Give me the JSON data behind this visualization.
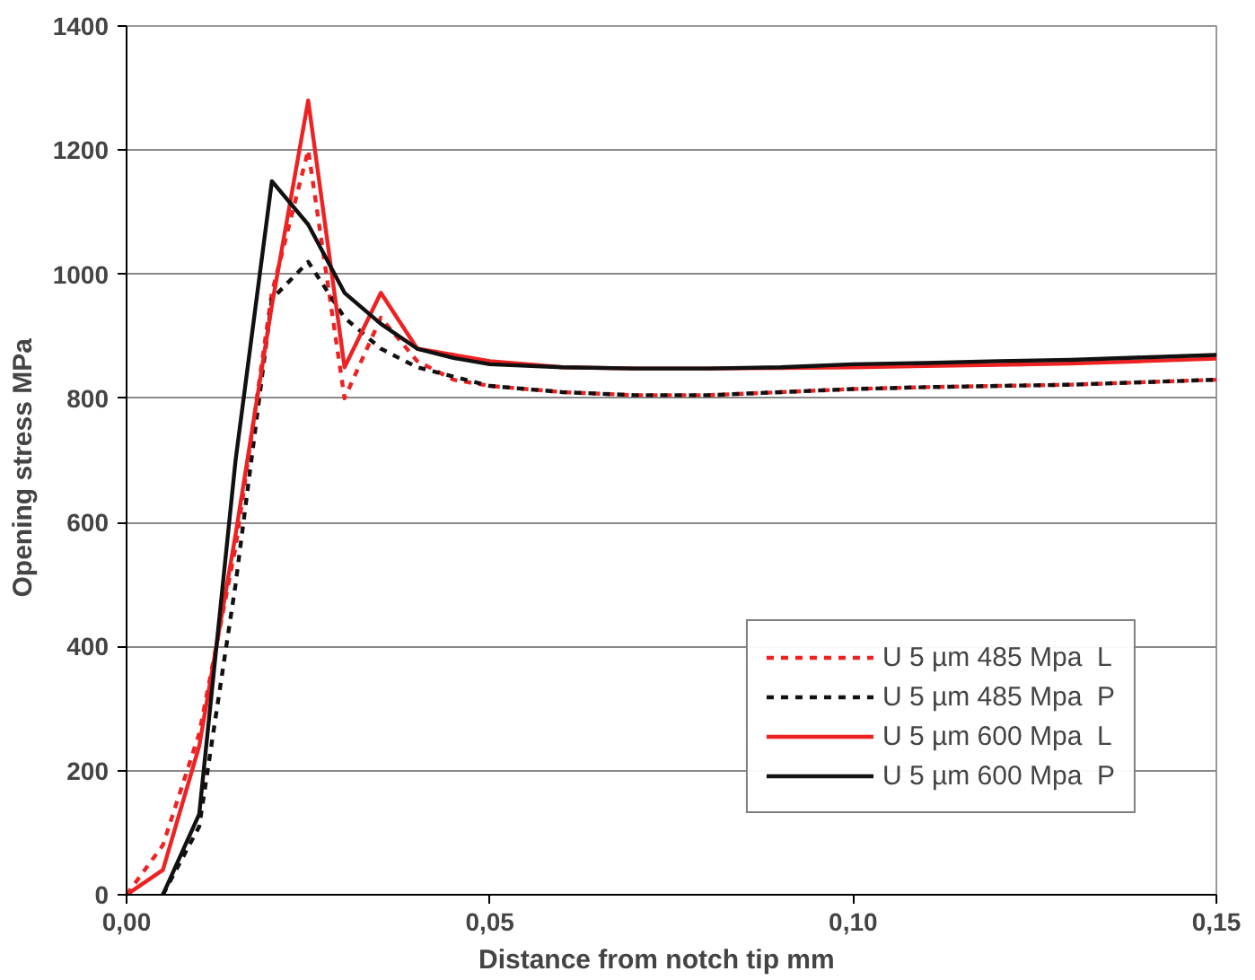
{
  "chart_data": {
    "type": "line",
    "xlabel": "Distance from notch tip     mm",
    "ylabel": "Opening stress   MPa",
    "xlim": [
      0,
      0.15
    ],
    "xticks": [
      {
        "value": 0,
        "label": "0,00"
      },
      {
        "value": 0.05,
        "label": "0,05"
      },
      {
        "value": 0.1,
        "label": "0,10"
      },
      {
        "value": 0.15,
        "label": "0,15"
      }
    ],
    "ylim": [
      0,
      1400
    ],
    "yticks": [
      0,
      200,
      400,
      600,
      800,
      1000,
      1200,
      1400
    ],
    "grid": "y",
    "legend": "bottom right",
    "marker": "none",
    "x": [
      0,
      0.005,
      0.01,
      0.015,
      0.02,
      0.025,
      0.03,
      0.035,
      0.04,
      0.045,
      0.05,
      0.06,
      0.07,
      0.08,
      0.09,
      0.1,
      0.11,
      0.12,
      0.13,
      0.14,
      0.15
    ],
    "series": [
      {
        "name": "U 5 µm 485 Mpa  L",
        "color": "#ee2222",
        "line_style": "dashed",
        "values": [
          0,
          80,
          260,
          560,
          970,
          1200,
          800,
          930,
          860,
          830,
          820,
          810,
          805,
          805,
          810,
          815,
          818,
          820,
          822,
          826,
          830
        ]
      },
      {
        "name": "U 5 µm 485 Mpa  P",
        "color": "#111111",
        "line_style": "dashed",
        "values": [
          null,
          0,
          110,
          500,
          960,
          1020,
          930,
          880,
          850,
          835,
          820,
          810,
          805,
          805,
          810,
          815,
          818,
          820,
          822,
          826,
          830
        ]
      },
      {
        "name": "U 5 µm 600 Mpa  L",
        "color": "#ee2222",
        "line_style": "solid",
        "values": [
          0,
          40,
          240,
          580,
          950,
          1280,
          850,
          970,
          880,
          870,
          860,
          850,
          848,
          848,
          849,
          850,
          852,
          854,
          856,
          860,
          864
        ]
      },
      {
        "name": "U 5 µm 600 Mpa  P",
        "color": "#111111",
        "line_style": "solid",
        "values": [
          null,
          0,
          130,
          700,
          1150,
          1080,
          970,
          920,
          880,
          865,
          855,
          850,
          848,
          848,
          850,
          855,
          857,
          860,
          862,
          866,
          870
        ]
      }
    ]
  }
}
